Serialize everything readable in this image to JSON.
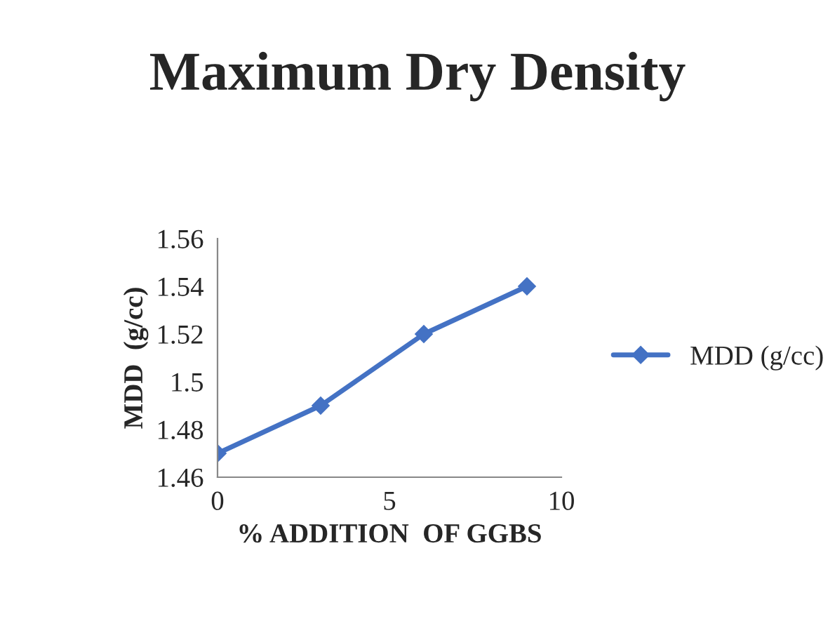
{
  "chart_data": {
    "type": "line",
    "title": "Maximum Dry Density",
    "xlabel": "% ADDITION  OF GGBS",
    "ylabel": "MDD  (g/cc)",
    "x": [
      0,
      3,
      6,
      9
    ],
    "series": [
      {
        "name": "MDD (g/cc)",
        "color": "#4472c4",
        "values": [
          1.47,
          1.49,
          1.52,
          1.54
        ]
      }
    ],
    "xlim": [
      0,
      10
    ],
    "xticks": [
      0,
      5,
      10
    ],
    "ylim": [
      1.46,
      1.56
    ],
    "yticks": [
      1.46,
      1.48,
      1.5,
      1.52,
      1.54,
      1.56
    ],
    "marker": "diamond",
    "line_style": "solid",
    "grid": false,
    "legend": "right"
  }
}
